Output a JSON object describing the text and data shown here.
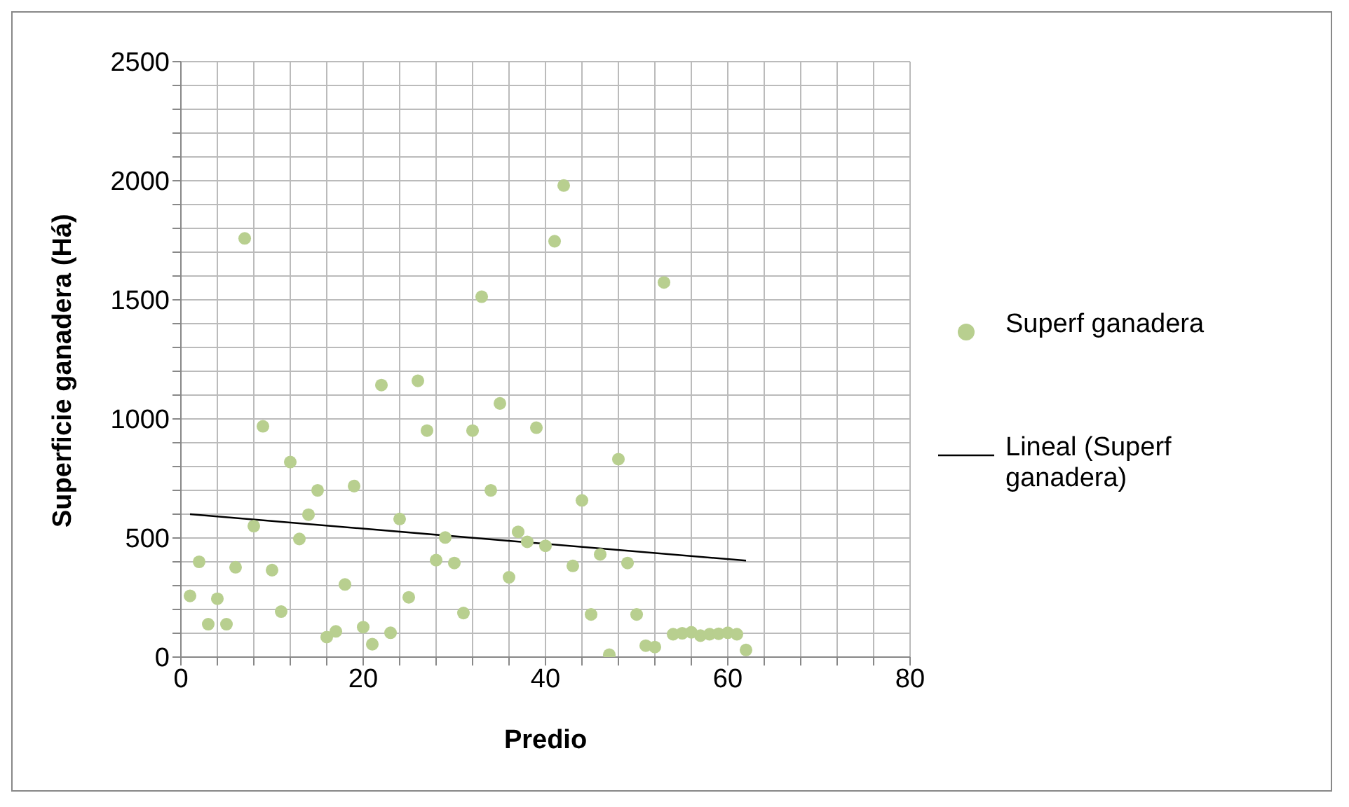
{
  "chart_data": {
    "type": "scatter",
    "xlabel": "Predio",
    "ylabel": "Superficie ganadera (Há)",
    "xlim": [
      0,
      80
    ],
    "ylim": [
      0,
      2500
    ],
    "xticks": [
      0,
      {
        "value": 4,
        "label": null
      },
      {
        "value": 8,
        "label": null
      },
      {
        "value": 12,
        "label": null
      },
      {
        "value": 16,
        "label": null
      },
      20,
      {
        "value": 24,
        "label": null
      },
      {
        "value": 28,
        "label": null
      },
      {
        "value": 32,
        "label": null
      },
      {
        "value": 36,
        "label": null
      },
      40,
      {
        "value": 44,
        "label": null
      },
      {
        "value": 48,
        "label": null
      },
      {
        "value": 52,
        "label": null
      },
      {
        "value": 56,
        "label": null
      },
      60,
      {
        "value": 64,
        "label": null
      },
      {
        "value": 68,
        "label": null
      },
      {
        "value": 72,
        "label": null
      },
      {
        "value": 76,
        "label": null
      },
      80
    ],
    "yticks": [
      0,
      {
        "value": 100,
        "label": null
      },
      {
        "value": 200,
        "label": null
      },
      {
        "value": 300,
        "label": null
      },
      {
        "value": 400,
        "label": null
      },
      500,
      {
        "value": 600,
        "label": null
      },
      {
        "value": 700,
        "label": null
      },
      {
        "value": 800,
        "label": null
      },
      {
        "value": 900,
        "label": null
      },
      1000,
      {
        "value": 1100,
        "label": null
      },
      {
        "value": 1200,
        "label": null
      },
      {
        "value": 1300,
        "label": null
      },
      {
        "value": 1400,
        "label": null
      },
      1500,
      {
        "value": 1600,
        "label": null
      },
      {
        "value": 1700,
        "label": null
      },
      {
        "value": 1800,
        "label": null
      },
      {
        "value": 1900,
        "label": null
      },
      2000,
      {
        "value": 2100,
        "label": null
      },
      {
        "value": 2200,
        "label": null
      },
      {
        "value": 2300,
        "label": null
      },
      {
        "value": 2400,
        "label": null
      },
      2500
    ],
    "grid": true,
    "legend": "right",
    "series": [
      {
        "name": "Superf ganadera",
        "color": "#b8cf8f",
        "marker": "circle",
        "x": [
          1,
          2,
          3,
          4,
          5,
          6,
          7,
          8,
          9,
          10,
          11,
          12,
          13,
          14,
          15,
          16,
          17,
          18,
          19,
          20,
          21,
          22,
          23,
          24,
          25,
          26,
          27,
          28,
          29,
          30,
          31,
          32,
          33,
          34,
          35,
          36,
          37,
          38,
          39,
          40,
          41,
          42,
          43,
          44,
          45,
          46,
          47,
          48,
          49,
          50,
          51,
          52,
          53,
          54,
          55,
          56,
          57,
          58,
          59,
          60,
          61,
          62
        ],
        "values": [
          257,
          400,
          138,
          245,
          138,
          377,
          1758,
          550,
          969,
          365,
          191,
          819,
          496,
          598,
          700,
          84,
          108,
          305,
          718,
          126,
          54,
          1142,
          102,
          580,
          251,
          1160,
          951,
          407,
          502,
          395,
          185,
          951,
          1513,
          700,
          1065,
          335,
          526,
          484,
          963,
          467,
          1746,
          1980,
          383,
          658,
          179,
          431,
          10,
          831,
          395,
          179,
          48,
          42,
          1573,
          96,
          100,
          104,
          90,
          96,
          98,
          102,
          96,
          30
        ]
      },
      {
        "name": "Lineal (Superf ganadera)",
        "type": "line",
        "color": "#000000",
        "marker": "none",
        "line_style": "solid",
        "x": [
          1,
          62
        ],
        "values": [
          600,
          405
        ]
      }
    ]
  }
}
